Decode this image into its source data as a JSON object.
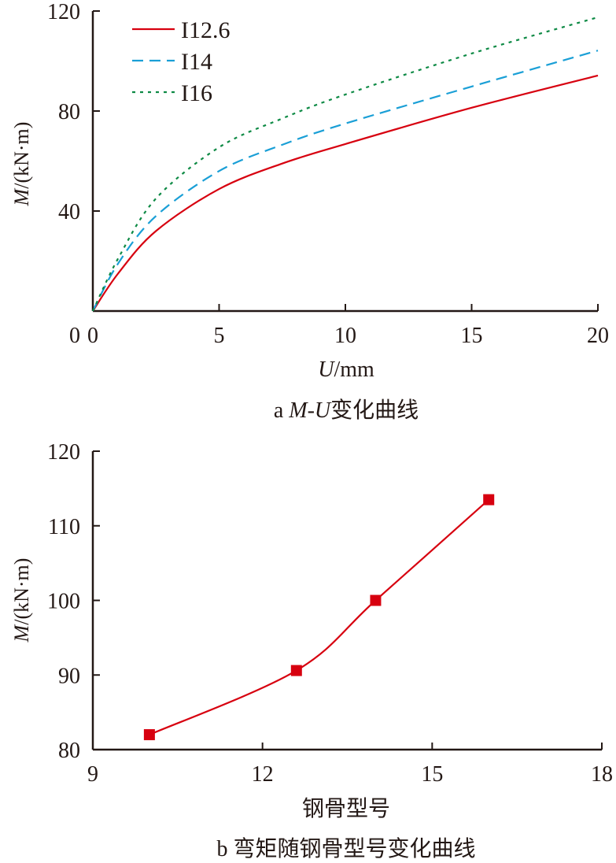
{
  "chart_data": [
    {
      "type": "line",
      "title": "a M-U变化曲线",
      "title_prefix": "a ",
      "title_italic": "M-U",
      "title_suffix": "变化曲线",
      "xlabel_italic": "U",
      "xlabel_suffix": "/mm",
      "ylabel_italic": "M",
      "ylabel_suffix": "/(kN·m)",
      "xlim": [
        0,
        20
      ],
      "ylim": [
        0,
        120
      ],
      "xticks": [
        0,
        5,
        10,
        15,
        20
      ],
      "yticks": [
        40,
        80,
        120
      ],
      "legend_position": "top-left",
      "grid": false,
      "x": [
        0,
        1,
        2.5,
        5,
        7.5,
        10,
        15,
        20
      ],
      "series": [
        {
          "name": "I12.6",
          "color": "#d7000f",
          "style": "solid",
          "values": [
            0,
            15,
            32,
            48.8,
            59,
            66.8,
            81.3,
            94.2
          ]
        },
        {
          "name": "I14",
          "color": "#1a9fd6",
          "style": "dashed",
          "values": [
            0,
            19,
            38,
            56,
            66.5,
            75,
            89.8,
            104.2
          ]
        },
        {
          "name": "I16",
          "color": "#0e8a45",
          "style": "dotted",
          "values": [
            0,
            21,
            45,
            65.5,
            77,
            86.6,
            103,
            117.5
          ]
        }
      ]
    },
    {
      "type": "line",
      "title": "b 弯矩随钢骨型号变化曲线",
      "xlabel": "钢骨型号",
      "ylabel_italic": "M",
      "ylabel_suffix": "/(kN·m)",
      "xlim": [
        9,
        18
      ],
      "ylim": [
        80,
        120
      ],
      "xticks": [
        9,
        12,
        15,
        18
      ],
      "yticks": [
        80,
        90,
        100,
        110,
        120
      ],
      "grid": false,
      "series": [
        {
          "name": "M",
          "color": "#d7000f",
          "marker": "square",
          "x": [
            10,
            12.6,
            14,
            16
          ],
          "values": [
            82,
            90.6,
            100,
            113.5
          ]
        }
      ]
    }
  ]
}
